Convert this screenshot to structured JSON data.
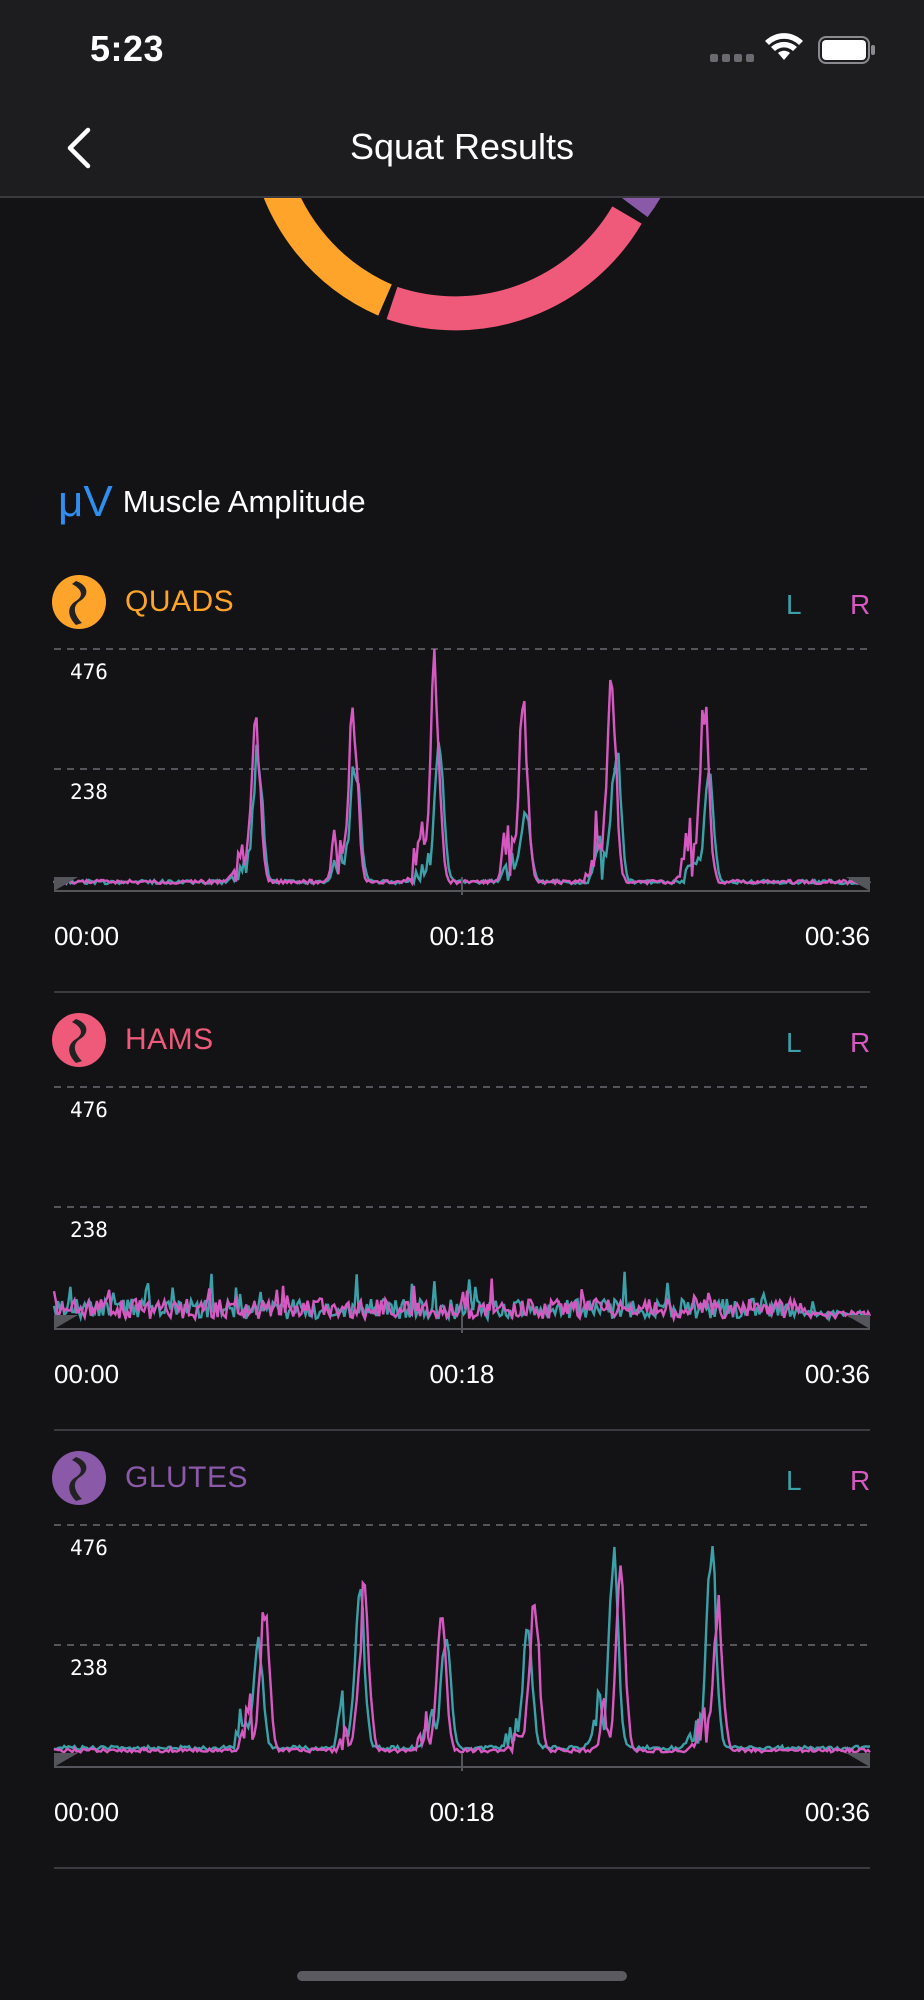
{
  "status_bar": {
    "time": "5:23",
    "icons": [
      "signal-icon",
      "wifi-icon",
      "battery-icon"
    ]
  },
  "nav": {
    "title": "Squat Results",
    "back_icon": "chevron-left-icon"
  },
  "section": {
    "icon_text": "μV",
    "title": "Muscle Amplitude"
  },
  "colors": {
    "quads": "#ffa42b",
    "hams": "#ef5a7a",
    "glutes": "#8a5aa8",
    "left": "#3ca0a8",
    "right": "#d659c1",
    "accent": "#2f8ff0"
  },
  "donut": {
    "segments": [
      {
        "name": "QUADS",
        "color": "#ffa42b"
      },
      {
        "name": "HAMS",
        "color": "#ef5a7a"
      },
      {
        "name": "GLUTES",
        "color": "#8a5aa8"
      }
    ]
  },
  "muscles": [
    {
      "name": "QUADS",
      "legend_left": "L",
      "legend_right": "R",
      "y_ticks": [
        "476",
        "238"
      ],
      "x_labels": [
        "00:00",
        "00:18",
        "00:36"
      ]
    },
    {
      "name": "HAMS",
      "legend_left": "L",
      "legend_right": "R",
      "y_ticks": [
        "476",
        "238"
      ],
      "x_labels": [
        "00:00",
        "00:18",
        "00:36"
      ]
    },
    {
      "name": "GLUTES",
      "legend_left": "L",
      "legend_right": "R",
      "y_ticks": [
        "476",
        "238"
      ],
      "x_labels": [
        "00:00",
        "00:18",
        "00:36"
      ]
    }
  ],
  "chart_data": [
    {
      "type": "line",
      "x_range": [
        0,
        36
      ],
      "ylim": [
        0,
        476
      ],
      "yticks": [
        238,
        476
      ],
      "xticks": [
        "00:00",
        "00:18",
        "00:36"
      ],
      "series": [
        {
          "name": "L",
          "color": "#3ca0a8",
          "peaks": [
            [
              9.0,
              300
            ],
            [
              13.3,
              280
            ],
            [
              17.0,
              310
            ],
            [
              20.8,
              180
            ],
            [
              24.8,
              310
            ],
            [
              28.9,
              250
            ]
          ],
          "baseline": 10
        },
        {
          "name": "R",
          "color": "#d659c1",
          "peaks": [
            [
              8.9,
              340
            ],
            [
              13.2,
              390
            ],
            [
              16.8,
              476
            ],
            [
              20.7,
              380
            ],
            [
              24.6,
              460
            ],
            [
              28.7,
              400
            ]
          ],
          "baseline": 10
        }
      ]
    },
    {
      "type": "line",
      "x_range": [
        0,
        36
      ],
      "ylim": [
        0,
        476
      ],
      "yticks": [
        238,
        476
      ],
      "xticks": [
        "00:00",
        "00:18",
        "00:36"
      ],
      "series": [
        {
          "name": "L",
          "color": "#3ca0a8",
          "level": 40,
          "max": 110
        },
        {
          "name": "R",
          "color": "#d659c1",
          "level": 40,
          "max": 95
        }
      ]
    },
    {
      "type": "line",
      "x_range": [
        0,
        36
      ],
      "ylim": [
        0,
        476
      ],
      "yticks": [
        238,
        476
      ],
      "xticks": [
        "00:00",
        "00:18",
        "00:36"
      ],
      "series": [
        {
          "name": "L",
          "color": "#3ca0a8",
          "peaks": [
            [
              9.0,
              260
            ],
            [
              13.5,
              350
            ],
            [
              17.3,
              260
            ],
            [
              20.9,
              270
            ],
            [
              24.7,
              440
            ],
            [
              29.0,
              470
            ]
          ],
          "baseline": 30
        },
        {
          "name": "R",
          "color": "#d659c1",
          "peaks": [
            [
              9.3,
              340
            ],
            [
              13.7,
              360
            ],
            [
              17.1,
              280
            ],
            [
              21.2,
              340
            ],
            [
              25.0,
              380
            ],
            [
              29.3,
              330
            ]
          ],
          "baseline": 25
        }
      ]
    }
  ]
}
